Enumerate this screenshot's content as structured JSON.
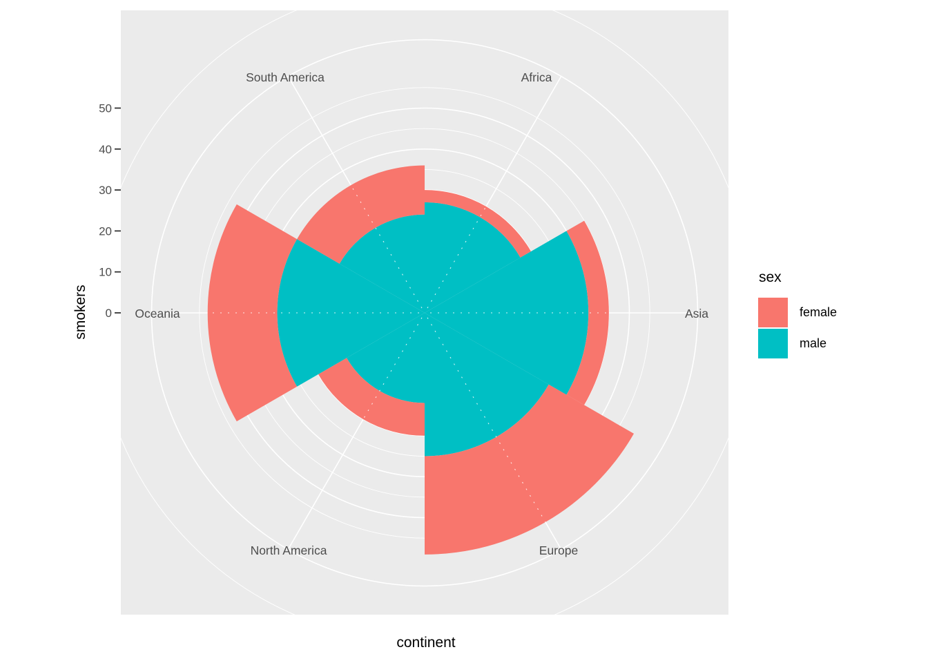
{
  "chart_data": {
    "type": "polar_stacked_bar_rose",
    "categories": [
      "Africa",
      "Asia",
      "Europe",
      "North America",
      "Oceania",
      "South America"
    ],
    "category_angles_deg": [
      30,
      90,
      150,
      210,
      270,
      330
    ],
    "series": [
      {
        "name": "male",
        "color": "#00BFC4",
        "stack": "inner",
        "values": [
          27,
          40,
          35,
          22,
          36,
          24
        ]
      },
      {
        "name": "female",
        "color": "#F8766D",
        "stack": "outer",
        "values": [
          3,
          5,
          24,
          8,
          17,
          12
        ]
      }
    ],
    "totals": [
      30,
      45,
      59,
      30,
      53,
      36
    ],
    "xlabel": "continent",
    "ylabel": "smokers",
    "yticks": [
      0,
      10,
      20,
      30,
      40,
      50
    ],
    "ytick_labels": [
      "0",
      "10",
      "20",
      "30",
      "40",
      "50"
    ],
    "radial_axis_max": 50,
    "grid": "on",
    "legend": {
      "title": "sex",
      "position": "right",
      "entries": [
        {
          "label": "female",
          "color": "#F8766D"
        },
        {
          "label": "male",
          "color": "#00BFC4"
        }
      ]
    },
    "colors": {
      "panel_bg": "#EBEBEB",
      "gridline": "#FFFFFF",
      "axis_text": "#4D4D4D",
      "title_text": "#000000",
      "female": "#F8766D",
      "male": "#00BFC4"
    }
  }
}
